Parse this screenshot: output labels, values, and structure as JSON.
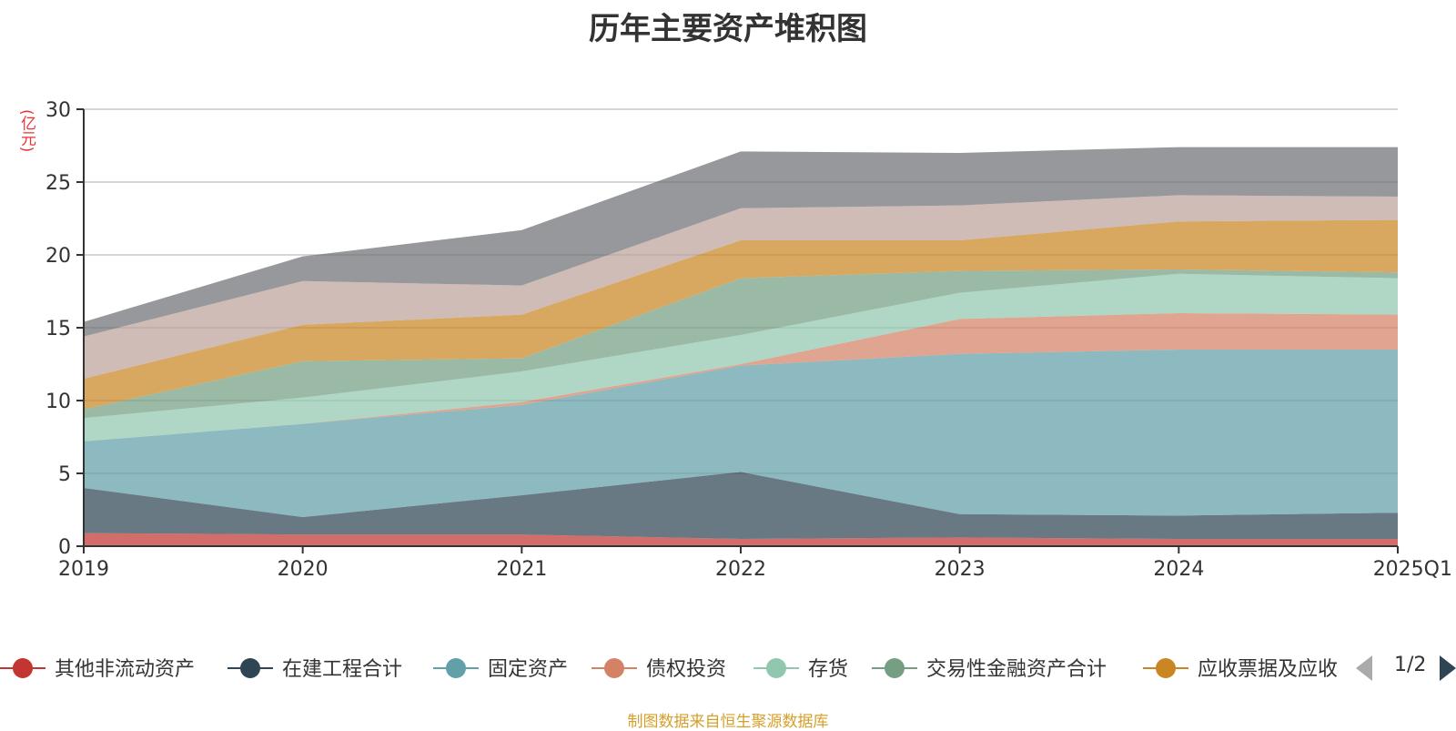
{
  "title": "历年主要资产堆积图",
  "unit": "(亿元)",
  "source": "制图数据来自恒生聚源数据库",
  "pager": {
    "label": "1/2",
    "prev_icon": "triangle-left-icon",
    "next_icon": "triangle-right-icon"
  },
  "chart_data": {
    "type": "area",
    "stacked": true,
    "x": [
      "2019",
      "2020",
      "2021",
      "2022",
      "2023",
      "2024",
      "2025Q1"
    ],
    "ylim": [
      0,
      30
    ],
    "yticks": [
      "0",
      "5",
      "10",
      "15",
      "20",
      "25",
      "30"
    ],
    "grid": true,
    "legend_position": "bottom",
    "legend_page": "1/2",
    "series": [
      {
        "name": "其他非流动资产",
        "color": "#c23531",
        "values": [
          0.9,
          0.8,
          0.8,
          0.5,
          0.6,
          0.5,
          0.5
        ]
      },
      {
        "name": "在建工程合计",
        "color": "#2f4554",
        "values": [
          3.1,
          1.2,
          2.7,
          4.6,
          1.6,
          1.6,
          1.8
        ]
      },
      {
        "name": "固定资产",
        "color": "#61a0a8",
        "values": [
          3.2,
          6.4,
          6.2,
          7.3,
          11.0,
          11.4,
          11.2
        ]
      },
      {
        "name": "债权投资",
        "color": "#d48265",
        "values": [
          0.0,
          0.0,
          0.2,
          0.1,
          2.4,
          2.5,
          2.4
        ]
      },
      {
        "name": "存货",
        "color": "#91c7ae",
        "values": [
          1.6,
          1.8,
          2.1,
          2.0,
          1.8,
          2.7,
          2.5
        ]
      },
      {
        "name": "交易性金融资产合计",
        "color": "#749f83",
        "values": [
          0.6,
          2.5,
          0.9,
          3.9,
          1.5,
          0.3,
          0.4
        ]
      },
      {
        "name": "应收票据及应收",
        "color": "#ca8622",
        "values": [
          2.1,
          2.5,
          3.0,
          2.6,
          2.1,
          3.3,
          3.6
        ]
      },
      {
        "name": "",
        "color": "#bda29a",
        "values": [
          2.9,
          3.0,
          2.0,
          2.2,
          2.4,
          1.8,
          1.6
        ]
      },
      {
        "name": "",
        "color": "#6e7074",
        "values": [
          1.0,
          1.7,
          3.8,
          3.9,
          3.6,
          3.3,
          3.4
        ]
      }
    ]
  }
}
